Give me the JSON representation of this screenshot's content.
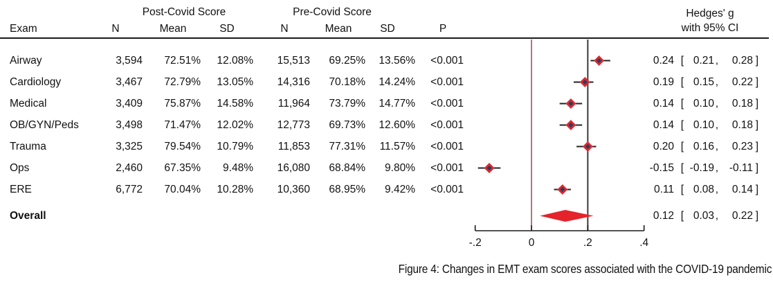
{
  "header": {
    "post_group": "Post-Covid Score",
    "pre_group": "Pre-Covid Score",
    "hedges_line1": "Hedges' g",
    "hedges_line2": "with 95% CI",
    "exam": "Exam",
    "cols": {
      "n": "N",
      "mean": "Mean",
      "sd": "SD",
      "p": "P"
    }
  },
  "table": {
    "rows": [
      {
        "exam": "Airway",
        "post_n": "3,594",
        "post_mean": "72.51%",
        "post_sd": "12.08%",
        "pre_n": "15,513",
        "pre_mean": "69.25%",
        "pre_sd": "13.56%",
        "p": "<0.001",
        "est": "0.24",
        "lo": "0.21",
        "hi": "0.28"
      },
      {
        "exam": "Cardiology",
        "post_n": "3,467",
        "post_mean": "72.79%",
        "post_sd": "13.05%",
        "pre_n": "14,316",
        "pre_mean": "70.18%",
        "pre_sd": "14.24%",
        "p": "<0.001",
        "est": "0.19",
        "lo": "0.15",
        "hi": "0.22"
      },
      {
        "exam": "Medical",
        "post_n": "3,409",
        "post_mean": "75.87%",
        "post_sd": "14.58%",
        "pre_n": "11,964",
        "pre_mean": "73.79%",
        "pre_sd": "14.77%",
        "p": "<0.001",
        "est": "0.14",
        "lo": "0.10",
        "hi": "0.18"
      },
      {
        "exam": "OB/GYN/Peds",
        "post_n": "3,498",
        "post_mean": "71.47%",
        "post_sd": "12.02%",
        "pre_n": "12,773",
        "pre_mean": "69.73%",
        "pre_sd": "12.60%",
        "p": "<0.001",
        "est": "0.14",
        "lo": "0.10",
        "hi": "0.18"
      },
      {
        "exam": "Trauma",
        "post_n": "3,325",
        "post_mean": "79.54%",
        "post_sd": "10.79%",
        "pre_n": "11,853",
        "pre_mean": "77.31%",
        "pre_sd": "11.57%",
        "p": "<0.001",
        "est": "0.20",
        "lo": "0.16",
        "hi": "0.23"
      },
      {
        "exam": "Ops",
        "post_n": "2,460",
        "post_mean": "67.35%",
        "post_sd": "9.48%",
        "pre_n": "16,080",
        "pre_mean": "68.84%",
        "pre_sd": "9.80%",
        "p": "<0.001",
        "est": "-0.15",
        "lo": "-0.19",
        "hi": "-0.11"
      },
      {
        "exam": "ERE",
        "post_n": "6,772",
        "post_mean": "70.04%",
        "post_sd": "10.28%",
        "pre_n": "10,360",
        "pre_mean": "68.95%",
        "pre_sd": "9.42%",
        "p": "<0.001",
        "est": "0.11",
        "lo": "0.08",
        "hi": "0.14"
      }
    ],
    "overall_row": {
      "exam": "Overall",
      "est": "0.12",
      "lo": "0.03",
      "hi": "0.22"
    }
  },
  "chart_data": {
    "type": "forest",
    "effect_measure": "Hedges' g",
    "x_axis": {
      "range": [
        -0.2,
        0.4
      ],
      "ticks": [
        -0.2,
        0,
        0.2,
        0.4
      ],
      "tick_labels": [
        "-.2",
        "0",
        ".2",
        ".4"
      ]
    },
    "ref_lines": [
      {
        "value": 0,
        "color": "#9b4850",
        "width": 1.5
      },
      {
        "value": 0.2,
        "color": "#3a3a3a",
        "width": 2
      }
    ],
    "studies": [
      {
        "label": "Airway",
        "g": 0.24,
        "lo": 0.21,
        "hi": 0.28
      },
      {
        "label": "Cardiology",
        "g": 0.19,
        "lo": 0.15,
        "hi": 0.22
      },
      {
        "label": "Medical",
        "g": 0.14,
        "lo": 0.1,
        "hi": 0.18
      },
      {
        "label": "OB/GYN/Peds",
        "g": 0.14,
        "lo": 0.1,
        "hi": 0.18
      },
      {
        "label": "Trauma",
        "g": 0.2,
        "lo": 0.16,
        "hi": 0.23
      },
      {
        "label": "Ops",
        "g": -0.15,
        "lo": -0.19,
        "hi": -0.11
      },
      {
        "label": "ERE",
        "g": 0.11,
        "lo": 0.08,
        "hi": 0.14
      }
    ],
    "overall": {
      "label": "Overall",
      "g": 0.12,
      "lo": 0.03,
      "hi": 0.22
    }
  },
  "colors": {
    "diamond_red": "#d92b32",
    "overall_red": "#e4232b",
    "marker_center_navy": "#303a5c",
    "whisker": "#222222",
    "axis": "#1a1a1a",
    "ref_zero_maroon": "#9b4850",
    "ref_dark": "#3a3a3a"
  },
  "caption": "Figure 4: Changes in EMT exam scores associated with the COVID-19 pandemic"
}
